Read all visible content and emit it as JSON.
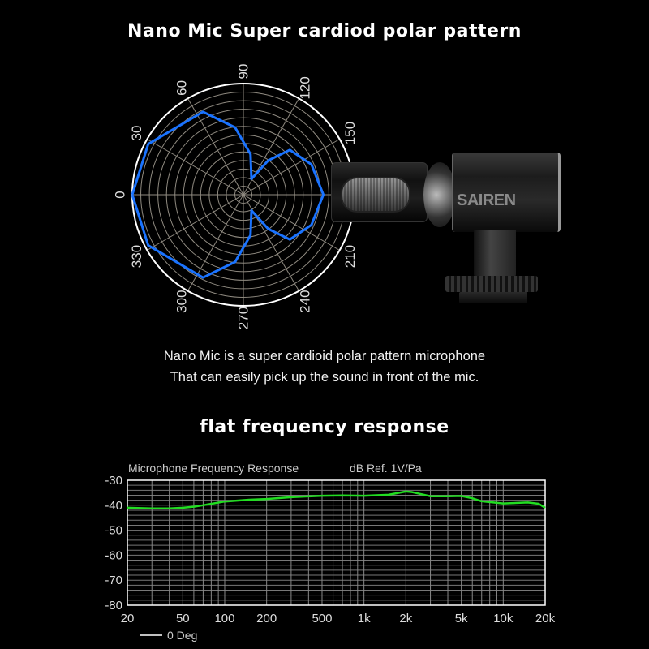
{
  "header": {
    "title": "Nano Mic Super cardiod polar pattern"
  },
  "description": [
    "Nano Mic is a super cardioid polar pattern microphone",
    "That can easily pick up the sound in front of the mic."
  ],
  "section2": {
    "title": "flat frequency response"
  },
  "product": {
    "brand": "SAIREN"
  },
  "chart_data": [
    {
      "type": "polar",
      "angle_labels": [
        "0",
        "30",
        "60",
        "90",
        "120",
        "150",
        "210",
        "240",
        "270",
        "300",
        "330"
      ],
      "angle_label_values": [
        0,
        30,
        60,
        90,
        120,
        150,
        210,
        240,
        270,
        300,
        330
      ],
      "grid": true,
      "series_color": "#1a73ff",
      "points": [
        {
          "angle": 0,
          "r": 1.0
        },
        {
          "angle": 28,
          "r": 0.97
        },
        {
          "angle": 64,
          "r": 0.83
        },
        {
          "angle": 83,
          "r": 0.61
        },
        {
          "angle": 100,
          "r": 0.37
        },
        {
          "angle": 117,
          "r": 0.16
        },
        {
          "angle": 126,
          "r": 0.38
        },
        {
          "angle": 136,
          "r": 0.58
        },
        {
          "angle": 156,
          "r": 0.67
        },
        {
          "angle": 180,
          "r": 0.72
        },
        {
          "angle": 204,
          "r": 0.67
        },
        {
          "angle": 224,
          "r": 0.58
        },
        {
          "angle": 234,
          "r": 0.38
        },
        {
          "angle": 243,
          "r": 0.16
        },
        {
          "angle": 260,
          "r": 0.37
        },
        {
          "angle": 277,
          "r": 0.61
        },
        {
          "angle": 296,
          "r": 0.83
        },
        {
          "angle": 332,
          "r": 0.97
        },
        {
          "angle": 360,
          "r": 1.0
        }
      ]
    },
    {
      "type": "line",
      "title": "Microphone Frequency Response",
      "ylabel": "dB Ref. 1V/Pa",
      "xscale": "log",
      "xlim": [
        20,
        20000
      ],
      "ylim": [
        -80,
        -30
      ],
      "x_ticks": [
        20,
        50,
        100,
        200,
        500,
        1000,
        2000,
        5000,
        10000,
        20000
      ],
      "x_tick_labels": [
        "20",
        "50",
        "100",
        "200",
        "500",
        "1k",
        "2k",
        "5k",
        "10k",
        "20k"
      ],
      "y_ticks": [
        -30,
        -40,
        -50,
        -60,
        -70,
        -80
      ],
      "y_tick_labels": [
        "-30",
        "-40",
        "-50",
        "-60",
        "-70",
        "-80"
      ],
      "grid": true,
      "legend": {
        "position": "bottom-left",
        "entries": [
          "0 Deg"
        ]
      },
      "series": [
        {
          "name": "0 Deg",
          "color": "#22dd22",
          "x": [
            20,
            30,
            40,
            50,
            60,
            70,
            100,
            150,
            200,
            300,
            500,
            700,
            1000,
            1500,
            2000,
            2200,
            3000,
            4000,
            5000,
            6000,
            7000,
            10000,
            15000,
            18000,
            20000
          ],
          "y": [
            -41,
            -41.3,
            -41.3,
            -41,
            -40.6,
            -40,
            -38.5,
            -37.8,
            -37.5,
            -36.8,
            -36.2,
            -36.1,
            -36.2,
            -35.8,
            -34.5,
            -34.7,
            -36.4,
            -36.4,
            -36.3,
            -37.2,
            -38.4,
            -39.3,
            -38.9,
            -39.4,
            -41
          ]
        }
      ]
    }
  ]
}
